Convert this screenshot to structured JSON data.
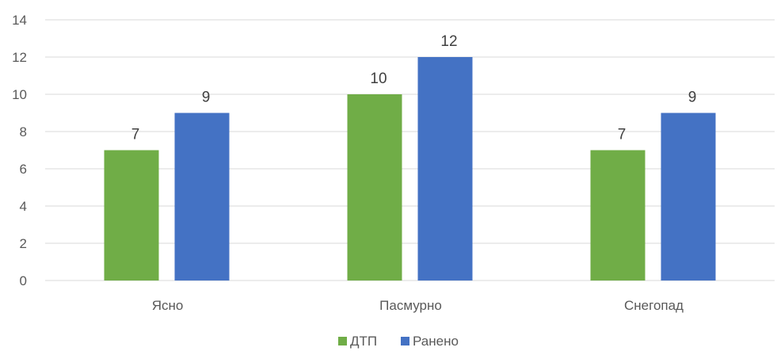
{
  "chart_data": {
    "type": "bar",
    "categories": [
      "Ясно",
      "Пасмурно",
      "Снегопад"
    ],
    "series": [
      {
        "name": "ДТП",
        "values": [
          7,
          10,
          7
        ],
        "color": "#70ad47"
      },
      {
        "name": "Ранено",
        "values": [
          9,
          12,
          9
        ],
        "color": "#4472c4"
      }
    ],
    "ylim": [
      0,
      14
    ],
    "yticks": [
      0,
      2,
      4,
      6,
      8,
      10,
      12,
      14
    ],
    "grid": true,
    "data_labels": true,
    "legend": "bottom-center"
  }
}
